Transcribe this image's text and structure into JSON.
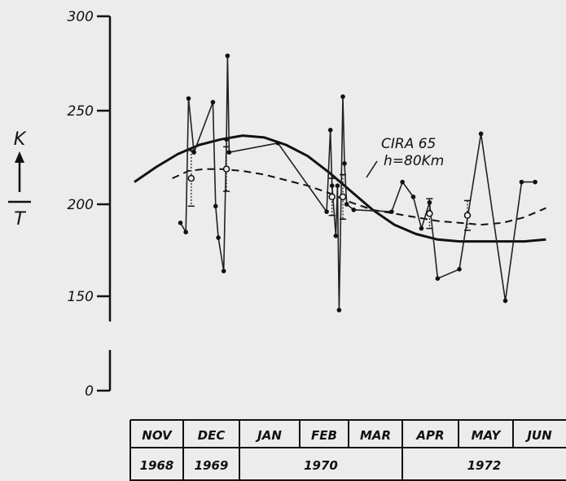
{
  "chart_data": {
    "type": "line",
    "ylabel_top": "K",
    "ylabel_bottom": "T",
    "y_ticks": [
      "300",
      "250",
      "200",
      "150",
      "0"
    ],
    "ylim": [
      0,
      300
    ],
    "y_axis_break": "between 0 and 150",
    "grid": false,
    "months": [
      "NOV",
      "DEC",
      "JAN",
      "FEB",
      "MAR",
      "APR",
      "MAY",
      "JUN"
    ],
    "years": [
      {
        "label": "1968",
        "span": [
          "NOV",
          "NOV"
        ]
      },
      {
        "label": "1969",
        "span": [
          "DEC",
          "DEC"
        ]
      },
      {
        "label": "1970",
        "span": [
          "JAN",
          "MAR"
        ]
      },
      {
        "label": "1972",
        "span": [
          "APR",
          "JUN"
        ]
      }
    ],
    "annotation": {
      "line1": "CIRA 65",
      "line2": "h=80Km"
    },
    "series": [
      {
        "name": "CIRA 65",
        "style": "solid-thick",
        "x": [
          0.0,
          0.4,
          0.8,
          1.2,
          1.6,
          2.0,
          2.4,
          2.8,
          3.2,
          3.6,
          4.0,
          4.4,
          4.8,
          5.2,
          5.6,
          6.0,
          6.4,
          6.8,
          7.2,
          7.6
        ],
        "y": [
          212,
          220,
          227,
          232,
          235,
          237,
          236,
          232,
          226,
          217,
          207,
          197,
          189,
          184,
          181,
          180,
          180,
          180,
          180,
          181
        ]
      },
      {
        "style": "dashed",
        "x": [
          0.7,
          1.0,
          1.3,
          1.6,
          2.0,
          2.4,
          2.8,
          3.2,
          3.6,
          4.0,
          4.4,
          4.8,
          5.2,
          5.6,
          6.0,
          6.4,
          6.8,
          7.2,
          7.6
        ],
        "y": [
          214,
          218,
          219,
          219,
          218,
          216,
          213,
          210,
          206,
          201,
          197,
          195,
          193,
          191,
          190,
          189,
          190,
          193,
          198
        ]
      },
      {
        "style": "measured-line",
        "x": [
          0.85,
          0.95,
          1.0,
          1.1,
          1.45,
          1.5,
          1.55,
          1.65,
          1.7,
          1.72,
          1.75,
          2.65,
          3.55,
          3.62,
          3.65,
          3.72,
          3.75,
          3.78,
          3.85,
          3.88,
          3.92,
          4.05,
          4.75,
          4.95,
          5.15,
          5.3,
          5.45,
          5.6,
          6.0,
          6.4,
          6.85,
          7.15,
          7.4
        ],
        "y": [
          190,
          185,
          257,
          228,
          255,
          199,
          182,
          164,
          235,
          280,
          228,
          233,
          196,
          240,
          210,
          183,
          210,
          143,
          258,
          222,
          200,
          197,
          196,
          212,
          204,
          187,
          201,
          160,
          165,
          238,
          148,
          212,
          212
        ]
      },
      {
        "style": "mean-with-error-bars",
        "x": [
          1.05,
          1.7,
          3.65,
          3.85,
          5.45,
          6.15
        ],
        "y": [
          214,
          219,
          204,
          204,
          195,
          194
        ],
        "yerr": [
          15,
          12,
          10,
          12,
          8,
          8
        ]
      }
    ]
  }
}
